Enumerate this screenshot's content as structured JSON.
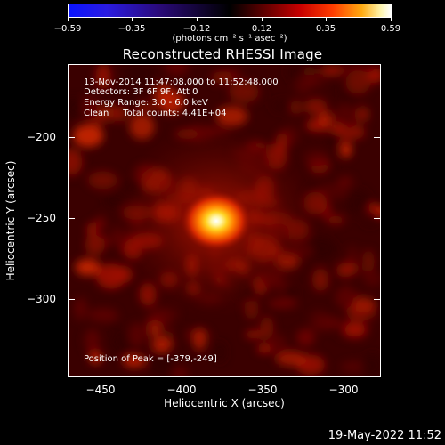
{
  "colorbar": {
    "tick_labels": [
      "−0.59",
      "−0.35",
      "−0.12",
      "0.12",
      "0.35",
      "0.59"
    ],
    "units": "(photons cm⁻² s⁻¹ asec⁻²)"
  },
  "title": "Reconstructed RHESSI Image",
  "info": {
    "line1": "13-Nov-2014 11:47:08.000 to 11:52:48.000",
    "line2": "Detectors: 3F 6F 9F, Att 0",
    "line3": "Energy Range: 3.0 - 6.0 keV",
    "line4": "Clean     Total counts: 4.41E+04",
    "peak": "Position of Peak = [-379,-249]"
  },
  "axes": {
    "xlabel": "Heliocentric X (arcsec)",
    "ylabel": "Heliocentric Y (arcsec)",
    "xticks": [
      "−450",
      "−400",
      "−350",
      "−300"
    ],
    "yticks": [
      "−200",
      "−250",
      "−300"
    ]
  },
  "datestamp": "19-May-2022 11:52",
  "image": {
    "peak_x_arcsec": -379,
    "peak_y_arcsec": -249,
    "x_range": [
      -470,
      -277
    ],
    "y_range": [
      -346,
      -153
    ]
  }
}
